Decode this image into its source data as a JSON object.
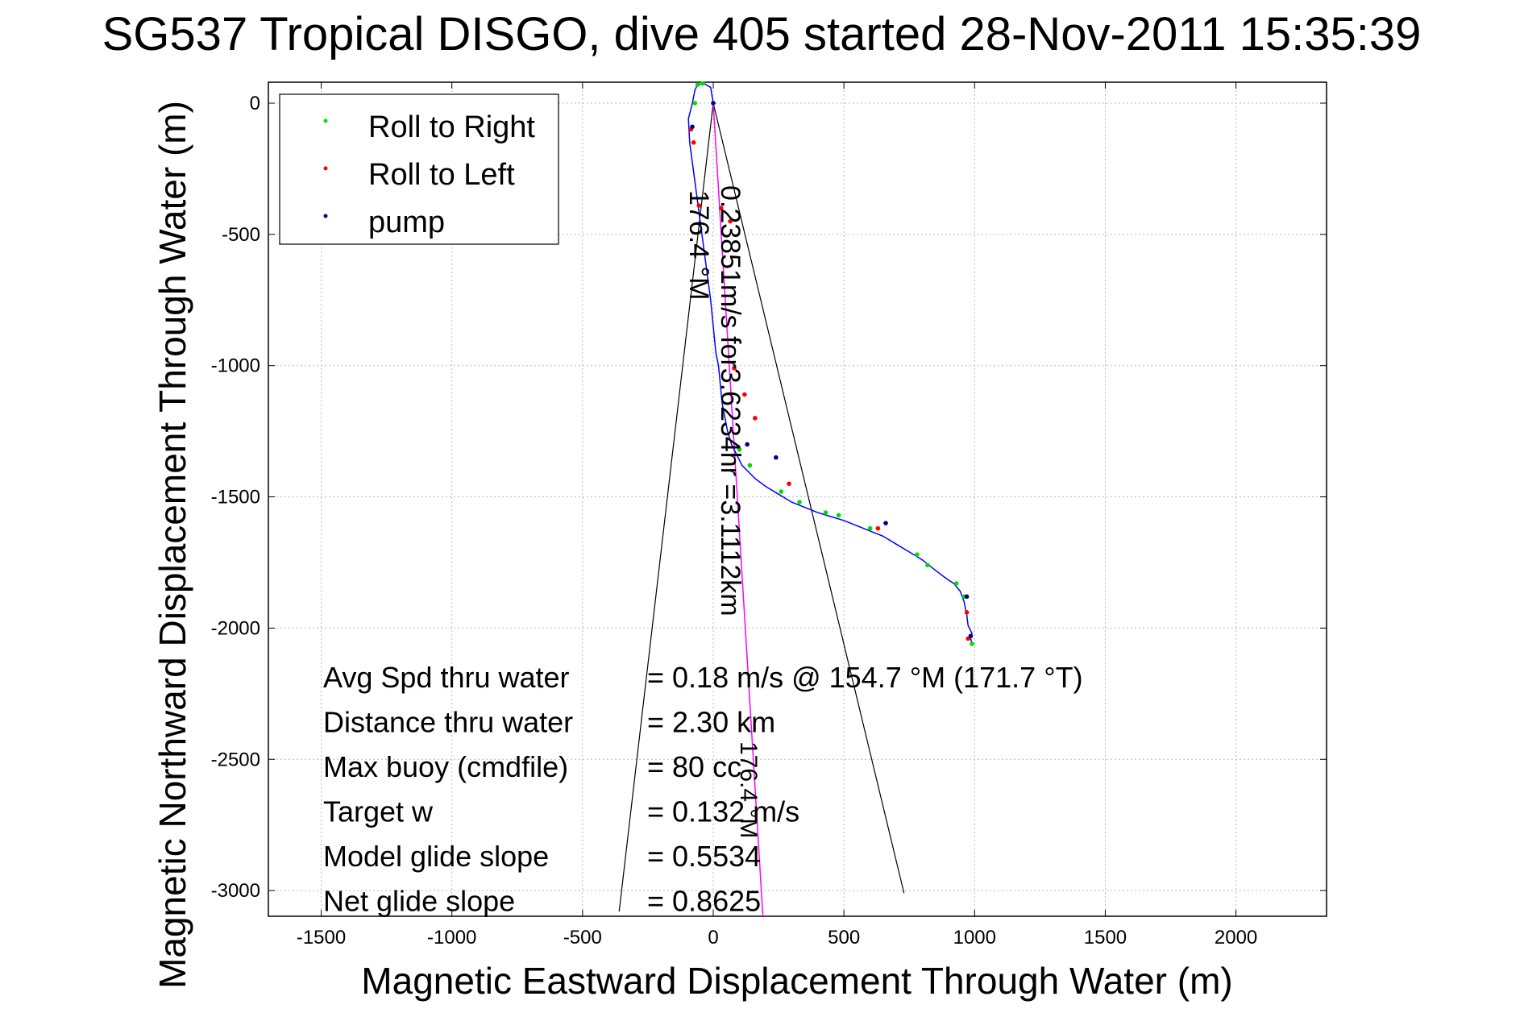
{
  "chart_data": {
    "type": "scatter",
    "title": "SG537 Tropical DISGO, dive 405 started 28-Nov-2011 15:35:39",
    "xlabel": "Magnetic Eastward Displacement Through Water (m)",
    "ylabel": "Magnetic Northward Displacement Through Water (m)",
    "xlim": [
      -1700,
      2350
    ],
    "ylim": [
      -3100,
      90
    ],
    "xticks": [
      -1500,
      -1000,
      -500,
      0,
      500,
      1000,
      1500,
      2000
    ],
    "yticks": [
      0,
      -500,
      -1000,
      -1500,
      -2000,
      -2500,
      -3000
    ],
    "grid": true,
    "legend_position": "top-left",
    "legend": [
      {
        "label": "Roll to Right",
        "color": "#00dd00"
      },
      {
        "label": "Roll to Left",
        "color": "#ff0000"
      },
      {
        "label": "pump",
        "color": "#000080"
      }
    ],
    "track": {
      "name": "glider track",
      "color": "#0000ff",
      "x": [
        0,
        -10,
        -35,
        -60,
        -70,
        -80,
        -95,
        -90,
        -70,
        -50,
        -30,
        -10,
        0,
        5,
        10,
        20,
        25,
        30,
        35,
        45,
        55,
        70,
        90,
        110,
        130,
        160,
        200,
        250,
        300,
        350,
        400,
        450,
        500,
        550,
        600,
        650,
        700,
        750,
        800,
        850,
        890,
        920,
        945,
        960,
        970,
        975,
        985,
        990,
        985,
        990
      ],
      "y": [
        0,
        60,
        75,
        70,
        50,
        0,
        -60,
        -150,
        -300,
        -450,
        -600,
        -750,
        -850,
        -900,
        -950,
        -1000,
        -1050,
        -1100,
        -1150,
        -1200,
        -1250,
        -1300,
        -1340,
        -1380,
        -1400,
        -1430,
        -1460,
        -1490,
        -1520,
        -1540,
        -1560,
        -1575,
        -1590,
        -1610,
        -1630,
        -1650,
        -1680,
        -1710,
        -1740,
        -1780,
        -1810,
        -1830,
        -1860,
        -1900,
        -1950,
        -1990,
        -2010,
        -2020,
        -2040,
        -2060
      ]
    },
    "roll_right": {
      "x": [
        -70,
        -60,
        -40,
        100,
        140,
        260,
        330,
        430,
        480,
        600,
        780,
        820,
        930,
        960,
        990
      ],
      "y": [
        0,
        70,
        75,
        -1320,
        -1380,
        -1480,
        -1520,
        -1560,
        -1570,
        -1620,
        -1720,
        -1760,
        -1830,
        -1880,
        -2060
      ]
    },
    "roll_left": {
      "x": [
        -85,
        -75,
        -55,
        30,
        65,
        80,
        120,
        160,
        290,
        630,
        970,
        975
      ],
      "y": [
        -100,
        -150,
        -390,
        -400,
        -450,
        -1010,
        -1110,
        -1200,
        -1450,
        -1620,
        -1940,
        -2040
      ]
    },
    "pump": {
      "x": [
        -80,
        0,
        130,
        240,
        660,
        970,
        985
      ],
      "y": [
        -90,
        0,
        -1300,
        -1350,
        -1600,
        -1880,
        -2030
      ]
    },
    "cone_lines": [
      {
        "x": [
          0,
          -360
        ],
        "y": [
          0,
          -3080
        ]
      },
      {
        "x": [
          0,
          730
        ],
        "y": [
          0,
          -3010
        ]
      }
    ],
    "heading_line": {
      "color": "#ff00ff",
      "x": [
        0,
        190
      ],
      "y": [
        0,
        -3100
      ]
    },
    "rotated_labels": {
      "heading_left": "176.4 °M",
      "current": "0.23851m/s for3.6234hr =3.1112km",
      "heading_current": "176.4 °M"
    },
    "annotations": [
      {
        "label": "Avg Spd thru water",
        "value": "=  0.18 m/s @ 154.7 °M (171.7 °T)"
      },
      {
        "label": "Distance thru water",
        "value": "=  2.30 km"
      },
      {
        "label": "Max buoy (cmdfile)",
        "value": "= 80 cc"
      },
      {
        "label": "Target w",
        "value": "= 0.132 m/s"
      },
      {
        "label": "Model glide slope",
        "value": "= 0.5534"
      },
      {
        "label": "Net glide slope",
        "value": "= 0.8625"
      }
    ]
  }
}
